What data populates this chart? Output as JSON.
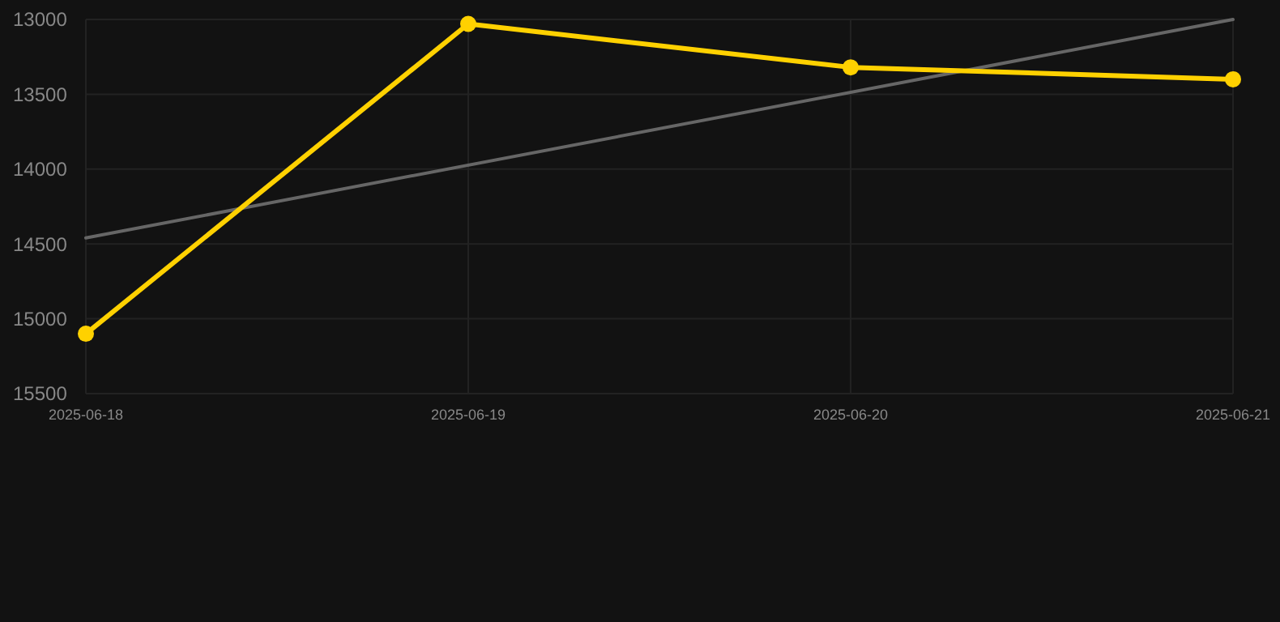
{
  "chart_data": {
    "type": "line",
    "x": [
      "2025-06-18",
      "2025-06-19",
      "2025-06-20",
      "2025-06-21"
    ],
    "series": [
      {
        "color": "#ffd100",
        "values": [
          15100,
          13030,
          13320,
          13400
        ],
        "marker": "circle"
      },
      {
        "type": "line",
        "color": "#666666",
        "x": [
          "2025-06-18",
          "2025-06-21"
        ],
        "values": [
          14460,
          13000
        ],
        "marker": "none"
      }
    ],
    "xlim": [
      "2025-06-18",
      "2025-06-21"
    ],
    "xticks": [
      {
        "value": "2025-06-18",
        "label": "2025-06-18"
      },
      {
        "value": "2025-06-19",
        "label": "2025-06-19"
      },
      {
        "value": "2025-06-20",
        "label": "2025-06-20"
      },
      {
        "value": "2025-06-21",
        "label": "2025-06-21"
      }
    ],
    "ylim": [
      15500,
      13000
    ],
    "yticks": [
      13000,
      13500,
      14000,
      14500,
      15000,
      15500
    ],
    "grid": true
  }
}
